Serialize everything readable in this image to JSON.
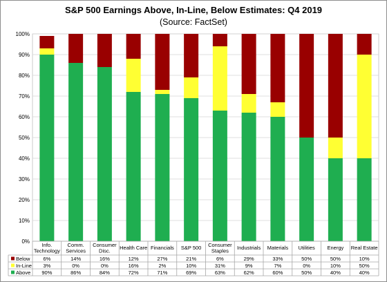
{
  "chart_data": {
    "type": "bar",
    "stacked": true,
    "title": "S&P 500 Earnings Above, In-Line, Below Estimates: Q4 2019",
    "subtitle": "(Source: FactSet)",
    "ylim": [
      0,
      100
    ],
    "yticks": [
      "0%",
      "10%",
      "20%",
      "30%",
      "40%",
      "50%",
      "60%",
      "70%",
      "80%",
      "90%",
      "100%"
    ],
    "grid": true,
    "legend": "data-table-left",
    "categories": [
      [
        "Info.",
        "Technology"
      ],
      [
        "Comm.",
        "Services"
      ],
      [
        "Consumer",
        "Disc."
      ],
      [
        "Health Care"
      ],
      [
        "Financials"
      ],
      [
        "S&P 500"
      ],
      [
        "Consumer",
        "Staples"
      ],
      [
        "Industrials"
      ],
      [
        "Materials"
      ],
      [
        "Utilities"
      ],
      [
        "Energy"
      ],
      [
        "Real Estate"
      ]
    ],
    "series": [
      {
        "name": "Above",
        "color": "#1fae50",
        "values": [
          90,
          86,
          84,
          72,
          71,
          69,
          63,
          62,
          60,
          50,
          40,
          40
        ],
        "labels": [
          "90%",
          "86%",
          "84%",
          "72%",
          "71%",
          "69%",
          "63%",
          "62%",
          "60%",
          "50%",
          "40%",
          "40%"
        ]
      },
      {
        "name": "In-Line",
        "color": "#ffff33",
        "values": [
          3,
          0,
          0,
          16,
          2,
          10,
          31,
          9,
          7,
          0,
          10,
          50
        ],
        "labels": [
          "3%",
          "0%",
          "0%",
          "16%",
          "2%",
          "10%",
          "31%",
          "9%",
          "7%",
          "0%",
          "10%",
          "50%"
        ]
      },
      {
        "name": "Below",
        "color": "#990000",
        "values": [
          6,
          14,
          16,
          12,
          27,
          21,
          6,
          29,
          33,
          50,
          50,
          10
        ],
        "labels": [
          "6%",
          "14%",
          "16%",
          "12%",
          "27%",
          "21%",
          "6%",
          "29%",
          "33%",
          "50%",
          "50%",
          "10%"
        ]
      }
    ]
  }
}
